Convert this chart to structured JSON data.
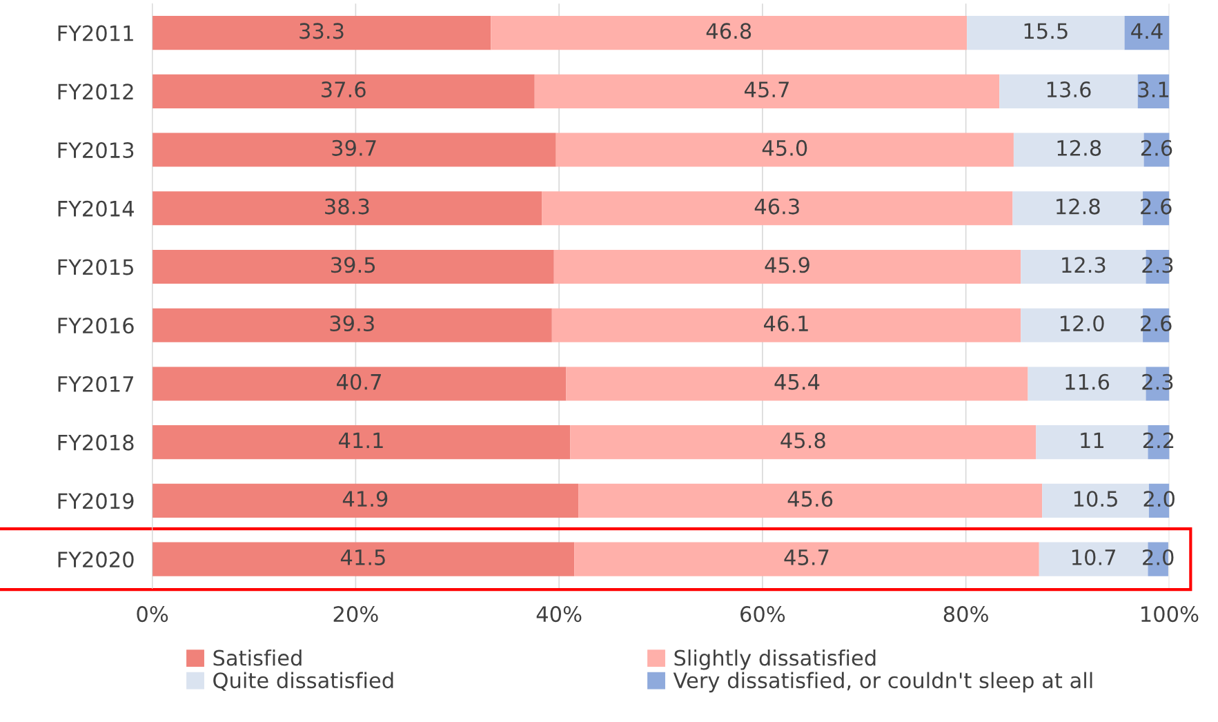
{
  "chart_data": {
    "type": "bar",
    "orientation": "horizontal",
    "stacked": true,
    "categories": [
      "FY2011",
      "FY2012",
      "FY2013",
      "FY2014",
      "FY2015",
      "FY2016",
      "FY2017",
      "FY2018",
      "FY2019",
      "FY2020"
    ],
    "series": [
      {
        "name": "Satisfied",
        "color": "#f0827a",
        "values": [
          33.3,
          37.6,
          39.7,
          38.3,
          39.5,
          39.3,
          40.7,
          41.1,
          41.9,
          41.5
        ],
        "value_labels": [
          "33.3",
          "37.6",
          "39.7",
          "38.3",
          "39.5",
          "39.3",
          "40.7",
          "41.1",
          "41.9",
          "41.5"
        ]
      },
      {
        "name": "Slightly dissatisfied",
        "color": "#ffb0aa",
        "values": [
          46.8,
          45.7,
          45.0,
          46.3,
          45.9,
          46.1,
          45.4,
          45.8,
          45.6,
          45.7
        ],
        "value_labels": [
          "46.8",
          "45.7",
          "45.0",
          "46.3",
          "45.9",
          "46.1",
          "45.4",
          "45.8",
          "45.6",
          "45.7"
        ]
      },
      {
        "name": "Quite dissatisfied",
        "color": "#dae3f0",
        "values": [
          15.5,
          13.6,
          12.8,
          12.8,
          12.3,
          12.0,
          11.6,
          11,
          10.5,
          10.7
        ],
        "value_labels": [
          "15.5",
          "13.6",
          "12.8",
          "12.8",
          "12.3",
          "12.0",
          "11.6",
          "11",
          "10.5",
          "10.7"
        ]
      },
      {
        "name": "Very dissatisfied, or couldn't sleep at all",
        "color": "#8faadc",
        "values": [
          4.4,
          3.1,
          2.6,
          2.6,
          2.3,
          2.6,
          2.3,
          2.2,
          2.0,
          2.0
        ],
        "value_labels": [
          "4.4",
          "3.1",
          "2.6",
          "2.6",
          "2.3",
          "2.6",
          "2.3",
          "2.2",
          "2.0",
          "2.0"
        ]
      }
    ],
    "xlim": [
      0,
      100
    ],
    "xticks": [
      {
        "value": 0,
        "label": "0%"
      },
      {
        "value": 20,
        "label": "20%"
      },
      {
        "value": 40,
        "label": "40%"
      },
      {
        "value": 60,
        "label": "60%"
      },
      {
        "value": 80,
        "label": "80%"
      },
      {
        "value": 100,
        "label": "100%"
      }
    ],
    "grid": "x",
    "legend": "bottom"
  }
}
